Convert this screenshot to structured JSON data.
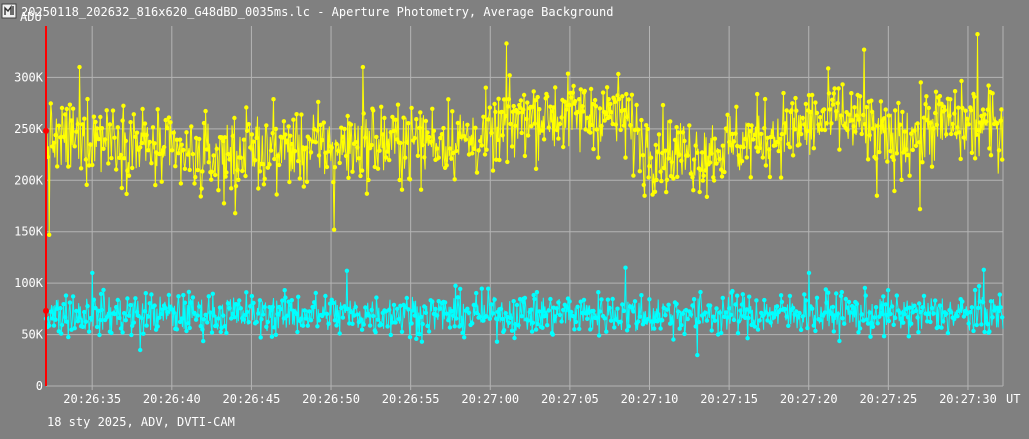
{
  "window": {
    "title": "20250118_202632_816x620_G48dBD_0035ms.lc - Aperture Photometry, Average Background",
    "icon": "lightcurve-app-icon"
  },
  "footer": {
    "text": "18 sty 2025, ADV, DVTI-CAM"
  },
  "chart_data": {
    "type": "line",
    "title": "20250118_202632_816x620_G48dBD_0035ms.lc - Aperture Photometry, Average Background",
    "ylabel": "ADU",
    "xlabel": "UT",
    "ylim": [
      0,
      350000
    ],
    "xlim": [
      "20:26:32.1",
      "20:27:32.2"
    ],
    "grid": true,
    "y_ticks": [
      0,
      50000,
      100000,
      150000,
      200000,
      250000,
      300000
    ],
    "y_tick_labels": [
      "0",
      "50K",
      "100K",
      "150K",
      "200K",
      "250K",
      "300K"
    ],
    "x_ticks": [
      "20:26:35",
      "20:26:40",
      "20:26:45",
      "20:26:50",
      "20:26:55",
      "20:27:00",
      "20:27:05",
      "20:27:10",
      "20:27:15",
      "20:27:20",
      "20:27:25",
      "20:27:30"
    ],
    "colors": {
      "background": "#808080",
      "grid": "#b4b4b4",
      "cursor": "#ff0000"
    },
    "series": [
      {
        "color": "#ffff00",
        "x_start": "20:26:32.1",
        "x_end": "20:27:32.2",
        "samples": 1200,
        "mean_trend_times": [
          "20:26:32",
          "20:26:36",
          "20:26:40",
          "20:26:42",
          "20:26:45",
          "20:26:50",
          "20:26:55",
          "20:27:00",
          "20:27:02",
          "20:27:05",
          "20:27:08",
          "20:27:10",
          "20:27:13",
          "20:27:18",
          "20:27:22",
          "20:27:25",
          "20:27:28",
          "20:27:31"
        ],
        "mean_trend_values": [
          235000,
          245000,
          225000,
          220000,
          230000,
          232000,
          238000,
          240000,
          262000,
          262000,
          265000,
          230000,
          225000,
          245000,
          262000,
          235000,
          255000,
          252000
        ],
        "spread": 22000,
        "peaks": [
          {
            "x": "20:26:32.3",
            "y": 147000
          },
          {
            "x": "20:26:34.2",
            "y": 310000
          },
          {
            "x": "20:26:44.0",
            "y": 168000
          },
          {
            "x": "20:26:50.2",
            "y": 152000
          },
          {
            "x": "20:26:52.0",
            "y": 310000
          },
          {
            "x": "20:27:01.0",
            "y": 333000
          },
          {
            "x": "20:27:09.7",
            "y": 185000
          },
          {
            "x": "20:27:23.5",
            "y": 327000
          },
          {
            "x": "20:27:24.3",
            "y": 185000
          },
          {
            "x": "20:27:27.0",
            "y": 172000
          },
          {
            "x": "20:27:30.6",
            "y": 342000
          }
        ]
      },
      {
        "color": "#00ffff",
        "x_start": "20:26:32.1",
        "x_end": "20:27:32.2",
        "samples": 1200,
        "mean_trend_times": [
          "20:26:32",
          "20:27:32"
        ],
        "mean_trend_values": [
          70000,
          70000
        ],
        "spread": 12000,
        "peaks": [
          {
            "x": "20:26:35.0",
            "y": 110000
          },
          {
            "x": "20:26:38.0",
            "y": 35000
          },
          {
            "x": "20:26:51.0",
            "y": 112000
          },
          {
            "x": "20:27:08.5",
            "y": 115000
          },
          {
            "x": "20:27:13.0",
            "y": 30000
          },
          {
            "x": "20:27:20.0",
            "y": 110000
          },
          {
            "x": "20:27:31.0",
            "y": 113000
          }
        ]
      }
    ],
    "cursor": {
      "x": "20:26:32.1",
      "markers": [
        {
          "series": 0,
          "y": 248000
        },
        {
          "series": 1,
          "y": 73000
        }
      ]
    }
  }
}
